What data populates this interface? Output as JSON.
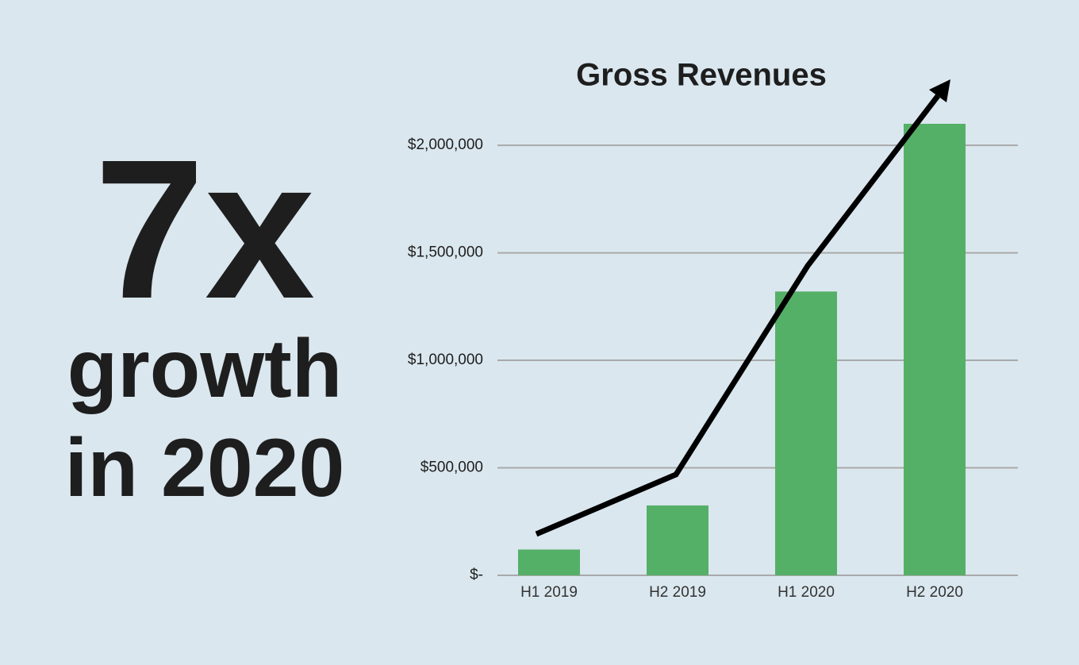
{
  "chart_data": {
    "type": "bar",
    "title": "Gross Revenues",
    "annotations": [
      "7x",
      "growth",
      "in 2020"
    ],
    "categories": [
      "H1 2019",
      "H2 2019",
      "H1 2020",
      "H2 2020"
    ],
    "values": [
      120000,
      325000,
      1320000,
      2100000
    ],
    "color": "#55b067",
    "ylim": [
      0,
      2100000
    ],
    "yticks": [
      {
        "value": 0,
        "label": "$-"
      },
      {
        "value": 500000,
        "label": "$500,000"
      },
      {
        "value": 1000000,
        "label": "$1,000,000"
      },
      {
        "value": 1500000,
        "label": "$1,500,000"
      },
      {
        "value": 2000000,
        "label": "$2,000,000"
      }
    ],
    "grid": true
  }
}
